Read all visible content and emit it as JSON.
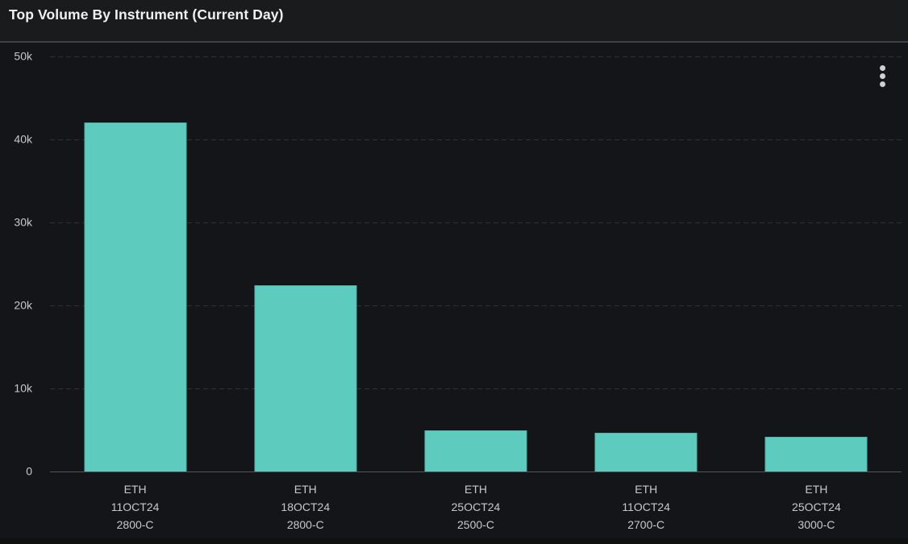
{
  "header": {
    "title": "Top Volume By Instrument (Current Day)",
    "menu_icon": "kebab-menu-icon"
  },
  "colors": {
    "panel_bg": "#141518",
    "header_bg": "#1a1b1d",
    "header_divider": "#3e4146",
    "title_text": "#f0f1f2",
    "axis_label": "#c8c9cb",
    "gridline": "#2e3138",
    "axis_line": "#53565a",
    "bar_fill": "#5dccbe",
    "bar_border": "#4fb5a7",
    "icon_color": "#cfd0d2"
  },
  "chart_data": {
    "type": "bar",
    "title": "Top Volume By Instrument (Current Day)",
    "categories": [
      [
        "ETH",
        "11OCT24",
        "2800-C"
      ],
      [
        "ETH",
        "18OCT24",
        "2800-C"
      ],
      [
        "ETH",
        "25OCT24",
        "2500-C"
      ],
      [
        "ETH",
        "11OCT24",
        "2700-C"
      ],
      [
        "ETH",
        "25OCT24",
        "3000-C"
      ]
    ],
    "values": [
      42000,
      22400,
      5000,
      4650,
      4200
    ],
    "xlabel": "",
    "ylabel": "",
    "ylim": [
      0,
      50000
    ],
    "yticks": [
      {
        "value": 0,
        "label": "0"
      },
      {
        "value": 10000,
        "label": "10k"
      },
      {
        "value": 20000,
        "label": "20k"
      },
      {
        "value": 30000,
        "label": "30k"
      },
      {
        "value": 40000,
        "label": "40k"
      },
      {
        "value": 50000,
        "label": "50k"
      }
    ],
    "grid": "horizontal-dashed",
    "legend": "none",
    "bar_color": "#5dccbe"
  }
}
